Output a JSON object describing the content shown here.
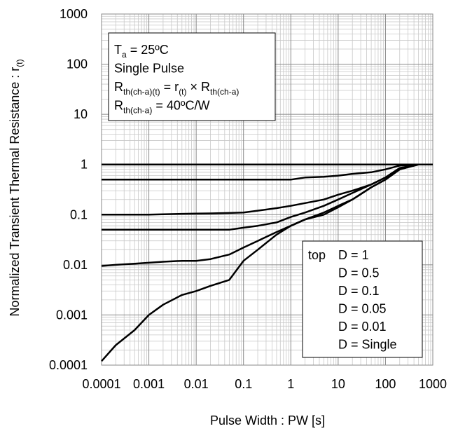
{
  "chart_data": {
    "type": "line",
    "x_label": [
      {
        "text": "Pulse Width : PW [s]"
      }
    ],
    "y_label": [
      {
        "text": "Normalized Transient Thermal Resistance : r"
      },
      {
        "sub": "(t)"
      }
    ],
    "annotations": [
      [
        {
          "text": "T"
        },
        {
          "sub": "a"
        },
        {
          "text": " = 25ºC"
        }
      ],
      [
        {
          "text": "Single Pulse"
        }
      ],
      [
        {
          "text": "R"
        },
        {
          "sub": "th(ch-a)(t)"
        },
        {
          "text": " = r"
        },
        {
          "sub": "(t)"
        },
        {
          "text": " × R"
        },
        {
          "sub": "th(ch-a)"
        }
      ],
      [
        {
          "text": "R"
        },
        {
          "sub": "th(ch-a)"
        },
        {
          "text": " = 40ºC/W"
        }
      ]
    ],
    "legend_title": "top",
    "xscale": "log",
    "yscale": "log",
    "grid": true,
    "xlim": [
      0.0001,
      1000
    ],
    "ylim": [
      0.0001,
      1000
    ],
    "xticks": [
      0.0001,
      0.001,
      0.01,
      0.1,
      1,
      10,
      100,
      1000
    ],
    "yticks": [
      0.0001,
      0.001,
      0.01,
      0.1,
      1,
      10,
      100,
      1000
    ],
    "x": [
      0.0001,
      0.0002,
      0.0005,
      0.001,
      0.002,
      0.005,
      0.01,
      0.02,
      0.05,
      0.1,
      0.2,
      0.5,
      1,
      2,
      5,
      10,
      20,
      50,
      100,
      200,
      500,
      1000
    ],
    "series": [
      {
        "name": "D = 1",
        "color": "#000000",
        "values": [
          1,
          1,
          1,
          1,
          1,
          1,
          1,
          1,
          1,
          1,
          1,
          1,
          1,
          1,
          1,
          1,
          1,
          1,
          1,
          1,
          1,
          1
        ]
      },
      {
        "name": "D = 0.5",
        "color": "#000000",
        "values": [
          0.5,
          0.5,
          0.5,
          0.5,
          0.5,
          0.5,
          0.5,
          0.5,
          0.5,
          0.5,
          0.5,
          0.5,
          0.5,
          0.55,
          0.57,
          0.6,
          0.65,
          0.7,
          0.8,
          0.95,
          1,
          1
        ]
      },
      {
        "name": "D = 0.1",
        "color": "#000000",
        "values": [
          0.1,
          0.1,
          0.1,
          0.1,
          0.102,
          0.104,
          0.105,
          0.106,
          0.108,
          0.11,
          0.12,
          0.135,
          0.15,
          0.17,
          0.2,
          0.25,
          0.3,
          0.4,
          0.55,
          0.85,
          1,
          1
        ]
      },
      {
        "name": "D = 0.05",
        "color": "#000000",
        "values": [
          0.05,
          0.05,
          0.05,
          0.05,
          0.05,
          0.05,
          0.05,
          0.05,
          0.05,
          0.055,
          0.06,
          0.07,
          0.09,
          0.11,
          0.15,
          0.2,
          0.27,
          0.4,
          0.55,
          0.85,
          1,
          1
        ]
      },
      {
        "name": "D = 0.01",
        "color": "#000000",
        "values": [
          0.0095,
          0.01,
          0.0105,
          0.011,
          0.0115,
          0.012,
          0.012,
          0.013,
          0.016,
          0.022,
          0.03,
          0.045,
          0.06,
          0.08,
          0.11,
          0.15,
          0.2,
          0.35,
          0.5,
          0.8,
          1,
          1
        ]
      },
      {
        "name": "D = Single",
        "color": "#000000",
        "values": [
          0.00012,
          0.00025,
          0.0005,
          0.001,
          0.0016,
          0.0025,
          0.003,
          0.0038,
          0.005,
          0.012,
          0.02,
          0.04,
          0.06,
          0.08,
          0.1,
          0.14,
          0.2,
          0.35,
          0.5,
          0.8,
          1,
          1
        ]
      }
    ]
  }
}
